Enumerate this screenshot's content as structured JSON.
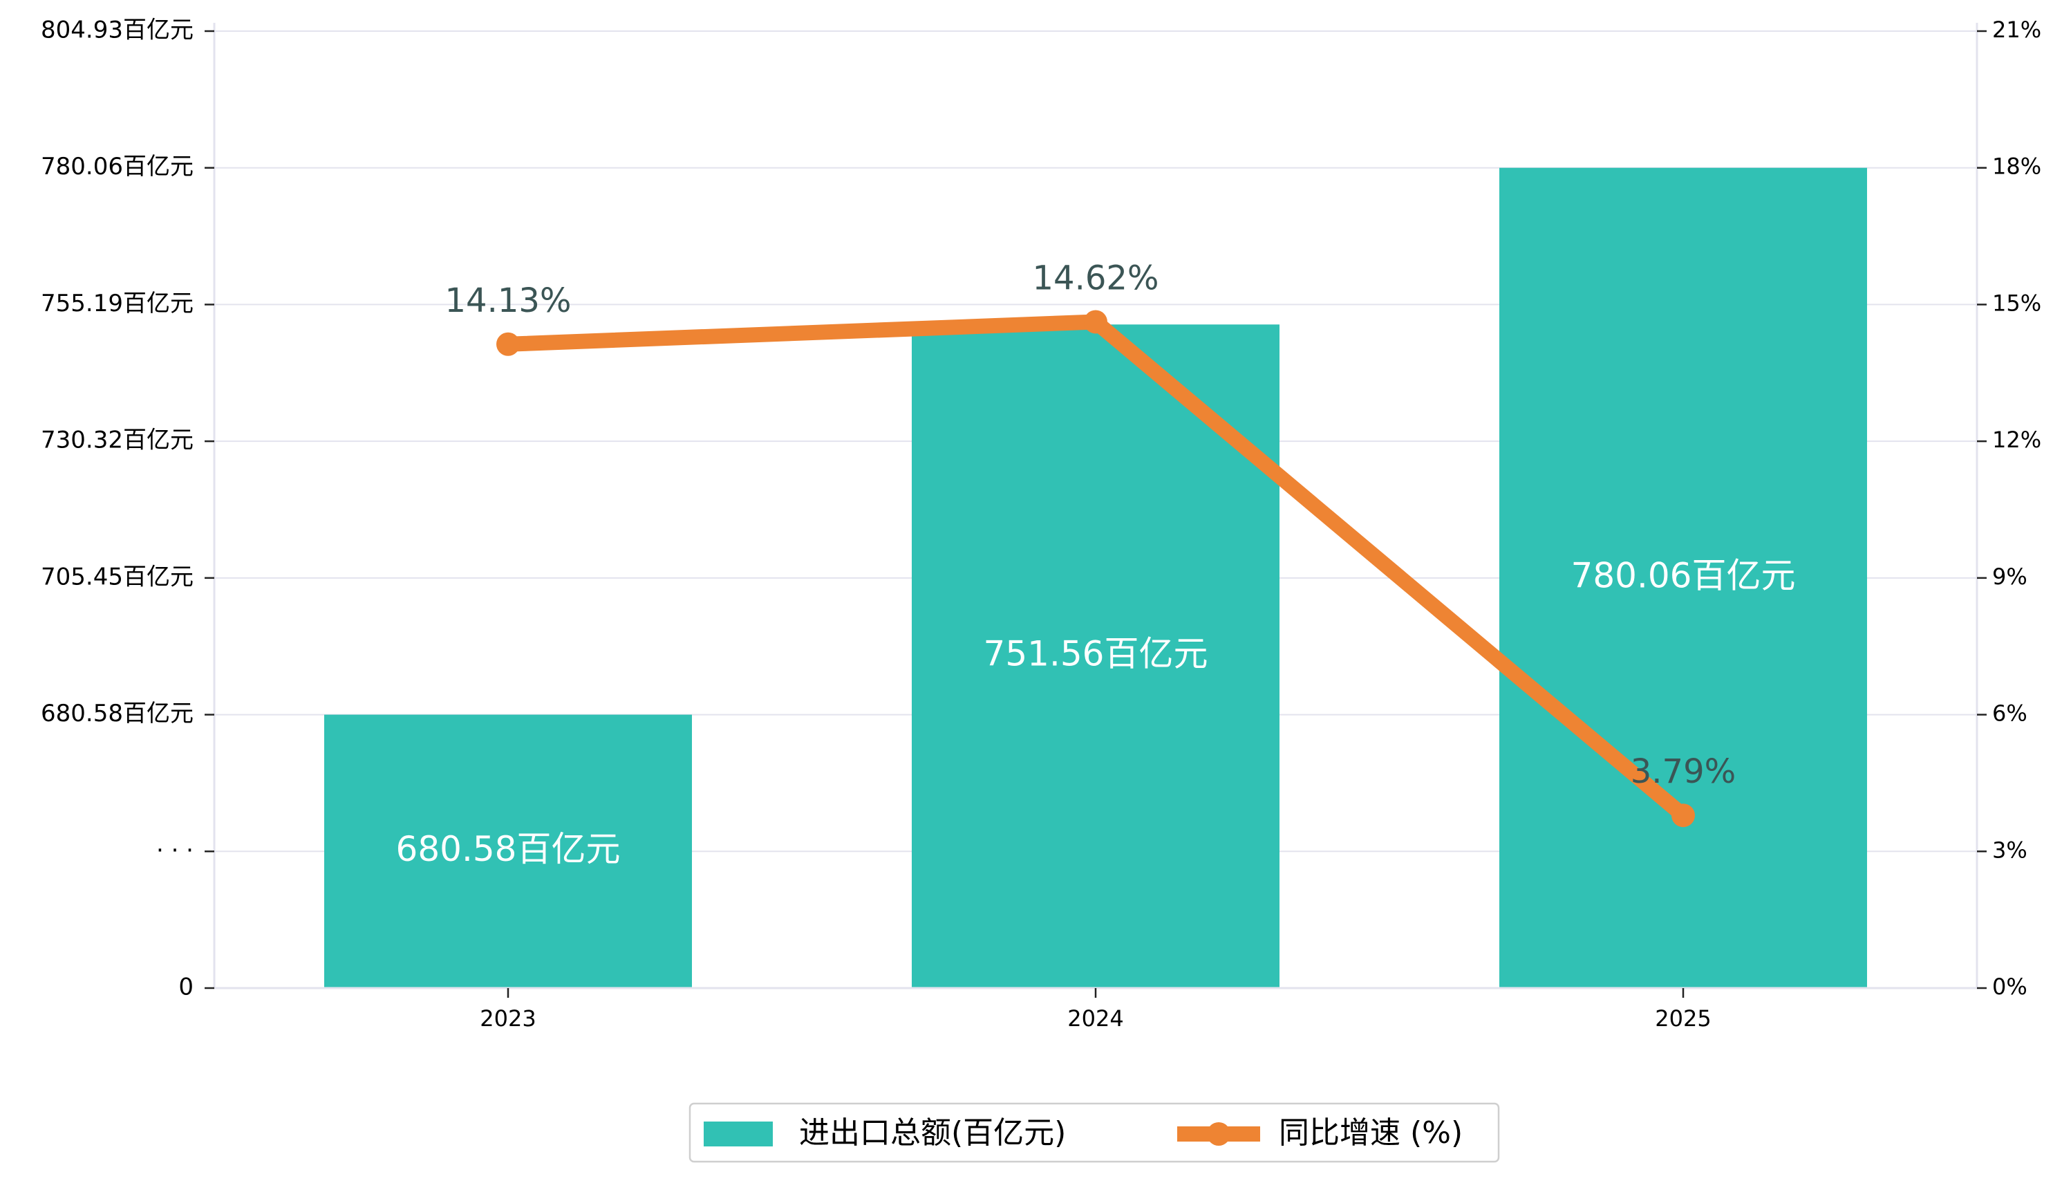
{
  "chart_data": {
    "type": "bar",
    "categories": [
      "2023",
      "2024",
      "2025"
    ],
    "series": [
      {
        "name": "进出口总额(百亿元)",
        "type": "bar",
        "axis": "left",
        "values": [
          680.58,
          751.56,
          780.06
        ],
        "labels": [
          "680.58百亿元",
          "751.56百亿元",
          "780.06百亿元"
        ],
        "color": "#31C1B4"
      },
      {
        "name": "同比增速 (%)",
        "type": "line",
        "axis": "right",
        "values": [
          14.13,
          14.62,
          3.79
        ],
        "labels": [
          "14.13%",
          "14.62%",
          "3.79%"
        ],
        "color": "#EE8433"
      }
    ],
    "y_left": {
      "broken_axis": true,
      "tick_labels": [
        "0",
        "· · ·",
        "680.58百亿元",
        "705.45百亿元",
        "730.32百亿元",
        "755.19百亿元",
        "780.06百亿元",
        "804.93百亿元"
      ],
      "tick_values": [
        null,
        null,
        680.58,
        705.45,
        730.32,
        755.19,
        780.06,
        804.93
      ],
      "ylim": [
        655.71,
        804.93
      ]
    },
    "y_right": {
      "tick_labels": [
        "0%",
        "3%",
        "6%",
        "9%",
        "12%",
        "15%",
        "18%",
        "21%"
      ],
      "ylim": [
        0,
        21
      ]
    },
    "grid": true,
    "legend_position": "bottom-center",
    "colors": {
      "bar": "#31C1B4",
      "line": "#EE8433",
      "bar_label": "#FFFFFF",
      "line_label": "#3B5555",
      "grid": "#E3E3EE",
      "axis": "#222222"
    }
  }
}
